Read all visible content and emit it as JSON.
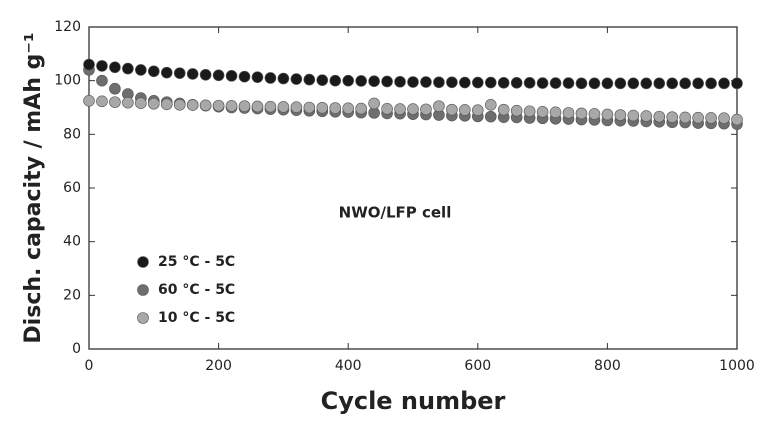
{
  "chart_data": {
    "type": "scatter",
    "xlabel": "Cycle number",
    "ylabel": "Disch. capacity / mAh g⁻¹",
    "annotation": "NWO/LFP cell",
    "x": [
      0,
      20,
      40,
      60,
      80,
      100,
      120,
      140,
      160,
      180,
      200,
      220,
      240,
      260,
      280,
      300,
      320,
      340,
      360,
      380,
      400,
      420,
      440,
      460,
      480,
      500,
      520,
      540,
      560,
      580,
      600,
      620,
      640,
      660,
      680,
      700,
      720,
      740,
      760,
      780,
      800,
      820,
      840,
      860,
      880,
      900,
      920,
      940,
      960,
      980,
      1000
    ],
    "series": [
      {
        "name": "60 °C - 5C",
        "color": "#6e6e6e",
        "values": [
          104,
          100,
          97,
          95,
          93.5,
          92.5,
          92,
          91.5,
          91,
          90.7,
          90.3,
          90,
          89.8,
          89.6,
          89.4,
          89.2,
          89,
          88.8,
          88.6,
          88.4,
          88.3,
          88.1,
          88,
          87.8,
          87.7,
          87.5,
          87.4,
          87.2,
          87,
          86.9,
          86.7,
          86.6,
          86.4,
          86.3,
          86.1,
          86,
          85.8,
          85.7,
          85.5,
          85.4,
          85.2,
          85.1,
          85,
          84.8,
          84.7,
          84.5,
          84.4,
          84.2,
          84.1,
          84,
          83.8
        ]
      },
      {
        "name": "10 °C - 5C",
        "color": "#a8a8a8",
        "values": [
          92.5,
          92.3,
          92,
          91.8,
          91.6,
          91.4,
          91.2,
          91,
          90.9,
          90.8,
          90.7,
          90.6,
          90.5,
          90.4,
          90.3,
          90.2,
          90.1,
          90,
          89.9,
          89.8,
          89.7,
          89.6,
          91.5,
          89.5,
          89.4,
          89.4,
          89.3,
          90.5,
          89.2,
          89.1,
          89,
          91,
          89.2,
          88.8,
          88.6,
          88.4,
          88.2,
          88,
          87.8,
          87.6,
          87.4,
          87.2,
          87,
          86.8,
          86.6,
          86.4,
          86.3,
          86.2,
          86.1,
          86,
          85.5
        ]
      },
      {
        "name": "25 °C - 5C",
        "color": "#1a1a1a",
        "values": [
          106,
          105.5,
          105,
          104.5,
          104,
          103.5,
          103,
          102.8,
          102.5,
          102.2,
          102,
          101.8,
          101.5,
          101.3,
          101,
          100.8,
          100.6,
          100.4,
          100.2,
          100,
          100,
          99.9,
          99.8,
          99.7,
          99.6,
          99.5,
          99.5,
          99.4,
          99.4,
          99.3,
          99.3,
          99.3,
          99.2,
          99.2,
          99.2,
          99.1,
          99.1,
          99.1,
          99,
          99,
          99,
          99,
          99,
          99,
          99,
          99,
          99,
          99,
          99,
          99,
          99
        ]
      }
    ],
    "legend_order": [
      2,
      0,
      1
    ],
    "xlim": [
      0,
      1000
    ],
    "xticks": [
      0,
      200,
      400,
      600,
      800,
      1000
    ],
    "ylim": [
      0,
      120
    ],
    "yticks": [
      0,
      20,
      40,
      60,
      80,
      100,
      120
    ]
  }
}
